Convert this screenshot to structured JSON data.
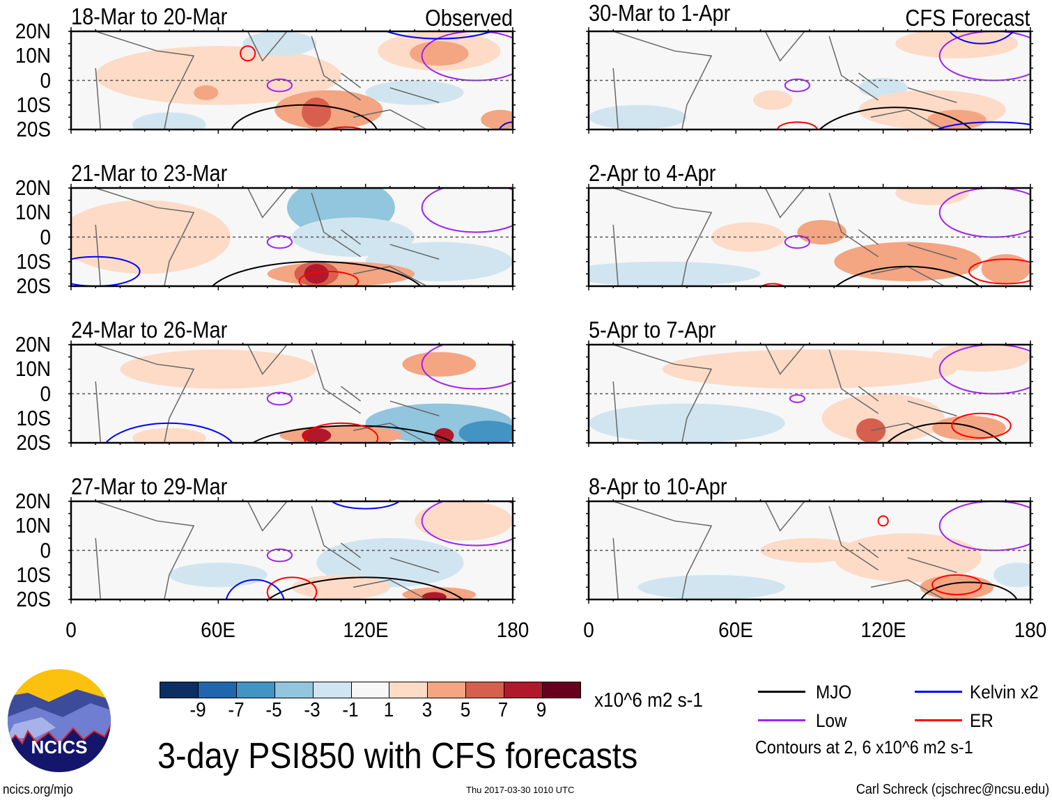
{
  "figure_title": "3-day PSI850 with CFS forecasts",
  "observed_label": "Observed",
  "forecast_label": "CFS Forecast",
  "units": "x10^6 m2 s-1",
  "contour_note": "Contours at 2, 6 x10^6 m2 s-1",
  "footer": {
    "left": "ncics.org/mjo",
    "center": "Thu 2017-03-30 1010 UTC",
    "right": "Carl Schreck (cjschrec@ncsu.edu)"
  },
  "logo_text": "NCICS",
  "legend": [
    {
      "label": "MJO",
      "color": "#000000"
    },
    {
      "label": "Kelvin x2",
      "color": "#0000ff"
    },
    {
      "label": "Low",
      "color": "#a020f0"
    },
    {
      "label": "ER",
      "color": "#ff0000"
    }
  ],
  "chart_data": {
    "type": "heatmap",
    "xlabel": "",
    "ylabel": "",
    "x_ticks": [
      "0",
      "60E",
      "120E",
      "180"
    ],
    "y_ticks": [
      "20N",
      "10N",
      "0",
      "10S",
      "20S"
    ],
    "xlim": [
      0,
      180
    ],
    "ylim": [
      -20,
      20
    ],
    "colorbar": {
      "levels": [
        "-9",
        "-7",
        "-5",
        "-3",
        "-1",
        "1",
        "3",
        "5",
        "7",
        "9"
      ],
      "colors": [
        "#0b2f63",
        "#2166ac",
        "#4393c3",
        "#92c5de",
        "#d1e5f0",
        "#f7f7f7",
        "#fddbc7",
        "#f4a582",
        "#d6604d",
        "#b2182b",
        "#67001f"
      ]
    },
    "contour_colors": {
      "MJO": "#000000",
      "Kelvin": "#0000ff",
      "Low": "#a020f0",
      "ER": "#ff0000"
    },
    "panels": [
      {
        "title": "18-Mar to 20-Mar",
        "kind": "observed",
        "anomalies": [
          [
            60,
            2,
            50,
            12,
            2
          ],
          [
            85,
            15,
            15,
            5,
            -2
          ],
          [
            40,
            -18,
            15,
            5,
            -2
          ],
          [
            140,
            -5,
            20,
            5,
            -2
          ],
          [
            150,
            12,
            25,
            8,
            2
          ],
          [
            150,
            11,
            12,
            5,
            4
          ],
          [
            105,
            -12,
            22,
            8,
            4
          ],
          [
            100,
            -13,
            6,
            6,
            6
          ],
          [
            175,
            -16,
            8,
            4,
            5
          ],
          [
            55,
            -5,
            5,
            3,
            4
          ]
        ],
        "contours": [
          [
            "MJO",
            95,
            -22,
            30,
            12
          ],
          [
            "Low",
            85,
            -2,
            5,
            2.5
          ],
          [
            "Low",
            165,
            10,
            22,
            10
          ],
          [
            "ER",
            72,
            11,
            3,
            3
          ],
          [
            "ER",
            112,
            -23,
            10,
            4
          ],
          [
            "Kelvin",
            150,
            27,
            30,
            10
          ],
          [
            "Kelvin",
            180,
            -22,
            6,
            5
          ]
        ]
      },
      {
        "title": "21-Mar to 23-Mar",
        "kind": "observed",
        "anomalies": [
          [
            30,
            0,
            35,
            15,
            2
          ],
          [
            110,
            12,
            22,
            12,
            -3
          ],
          [
            115,
            0,
            25,
            8,
            -2
          ],
          [
            150,
            -10,
            30,
            8,
            -2
          ],
          [
            110,
            -15,
            30,
            5,
            4
          ],
          [
            100,
            -15,
            9,
            5,
            6
          ],
          [
            100,
            -15,
            5,
            4,
            9
          ]
        ],
        "contours": [
          [
            "MJO",
            100,
            -25,
            45,
            15
          ],
          [
            "Low",
            85,
            -2,
            5,
            2.5
          ],
          [
            "Low",
            165,
            12,
            22,
            10
          ],
          [
            "ER",
            105,
            -18,
            12,
            4
          ],
          [
            "Kelvin",
            10,
            -14,
            18,
            6
          ],
          [
            "Kelvin",
            45,
            25,
            15,
            5
          ]
        ]
      },
      {
        "title": "24-Mar to 26-Mar",
        "kind": "observed",
        "anomalies": [
          [
            60,
            10,
            40,
            8,
            2
          ],
          [
            40,
            -18,
            15,
            4,
            2
          ],
          [
            150,
            -12,
            30,
            8,
            -3
          ],
          [
            170,
            -16,
            12,
            5,
            -6
          ],
          [
            150,
            12,
            15,
            5,
            4
          ],
          [
            110,
            -17,
            25,
            4,
            5
          ],
          [
            100,
            -17,
            6,
            3,
            9
          ],
          [
            152,
            -17,
            4,
            3,
            9
          ]
        ],
        "contours": [
          [
            "MJO",
            115,
            -25,
            45,
            12
          ],
          [
            "Low",
            85,
            -2,
            5,
            2.5
          ],
          [
            "Low",
            165,
            12,
            22,
            10
          ],
          [
            "ER",
            110,
            -18,
            15,
            6
          ],
          [
            "Kelvin",
            40,
            -25,
            28,
            13
          ]
        ]
      },
      {
        "title": "27-Mar to 29-Mar",
        "kind": "observed",
        "anomalies": [
          [
            130,
            -5,
            30,
            10,
            -2
          ],
          [
            60,
            -10,
            20,
            5,
            -2
          ],
          [
            110,
            -15,
            20,
            5,
            2
          ],
          [
            160,
            12,
            20,
            8,
            2
          ],
          [
            150,
            -18,
            15,
            3,
            5
          ],
          [
            148,
            -19,
            5,
            2,
            9
          ]
        ],
        "contours": [
          [
            "MJO",
            120,
            -28,
            45,
            17
          ],
          [
            "Low",
            85,
            -2,
            5,
            2.5
          ],
          [
            "Low",
            165,
            12,
            22,
            10
          ],
          [
            "ER",
            90,
            -17,
            10,
            6
          ],
          [
            "Kelvin",
            75,
            -22,
            12,
            10
          ],
          [
            "Kelvin",
            120,
            22,
            15,
            5
          ]
        ]
      },
      {
        "title": "30-Mar to 1-Apr",
        "kind": "forecast",
        "anomalies": [
          [
            150,
            15,
            25,
            6,
            2
          ],
          [
            120,
            -3,
            10,
            4,
            -2
          ],
          [
            20,
            -15,
            20,
            5,
            -2
          ],
          [
            75,
            -8,
            8,
            4,
            2
          ],
          [
            140,
            -12,
            30,
            8,
            3
          ],
          [
            150,
            -16,
            12,
            4,
            4
          ]
        ],
        "contours": [
          [
            "MJO",
            125,
            -28,
            35,
            17
          ],
          [
            "Low",
            85,
            -2,
            5,
            2.5
          ],
          [
            "Low",
            165,
            10,
            22,
            10
          ],
          [
            "ER",
            85,
            -20,
            8,
            3
          ],
          [
            "Kelvin",
            165,
            -22,
            25,
            5
          ],
          [
            "Kelvin",
            160,
            25,
            15,
            10
          ]
        ]
      },
      {
        "title": "2-Apr to 4-Apr",
        "kind": "forecast",
        "anomalies": [
          [
            30,
            -15,
            40,
            5,
            -2
          ],
          [
            140,
            18,
            15,
            5,
            2
          ],
          [
            65,
            0,
            15,
            6,
            2
          ],
          [
            95,
            2,
            10,
            5,
            4
          ],
          [
            130,
            -10,
            30,
            8,
            4
          ],
          [
            170,
            -13,
            10,
            6,
            5
          ]
        ],
        "contours": [
          [
            "MJO",
            130,
            -30,
            35,
            18
          ],
          [
            "Low",
            85,
            -2,
            5,
            2.5
          ],
          [
            "Low",
            165,
            10,
            22,
            10
          ],
          [
            "ER",
            170,
            -14,
            15,
            5
          ],
          [
            "ER",
            75,
            -21,
            5,
            2
          ]
        ]
      },
      {
        "title": "5-Apr to 7-Apr",
        "kind": "forecast",
        "anomalies": [
          [
            90,
            10,
            60,
            8,
            2
          ],
          [
            40,
            -12,
            40,
            8,
            -2
          ],
          [
            160,
            15,
            20,
            6,
            3
          ],
          [
            120,
            -10,
            25,
            10,
            3
          ],
          [
            115,
            -15,
            6,
            5,
            6
          ],
          [
            155,
            -14,
            15,
            5,
            5
          ]
        ],
        "contours": [
          [
            "MJO",
            145,
            -30,
            28,
            18
          ],
          [
            "Low",
            85,
            -2,
            3,
            1.5
          ],
          [
            "Low",
            165,
            10,
            22,
            10
          ],
          [
            "ER",
            160,
            -13,
            12,
            5
          ]
        ]
      },
      {
        "title": "8-Apr to 10-Apr",
        "kind": "forecast",
        "anomalies": [
          [
            90,
            0,
            20,
            5,
            2
          ],
          [
            50,
            -15,
            30,
            5,
            -2
          ],
          [
            175,
            -10,
            10,
            5,
            -2
          ],
          [
            130,
            -3,
            30,
            10,
            3
          ],
          [
            150,
            -15,
            15,
            5,
            4
          ]
        ],
        "contours": [
          [
            "MJO",
            155,
            -22,
            20,
            9
          ],
          [
            "Low",
            165,
            10,
            22,
            10
          ],
          [
            "ER",
            150,
            -14,
            10,
            4
          ],
          [
            "ER",
            120,
            12,
            2,
            2
          ]
        ]
      }
    ]
  }
}
